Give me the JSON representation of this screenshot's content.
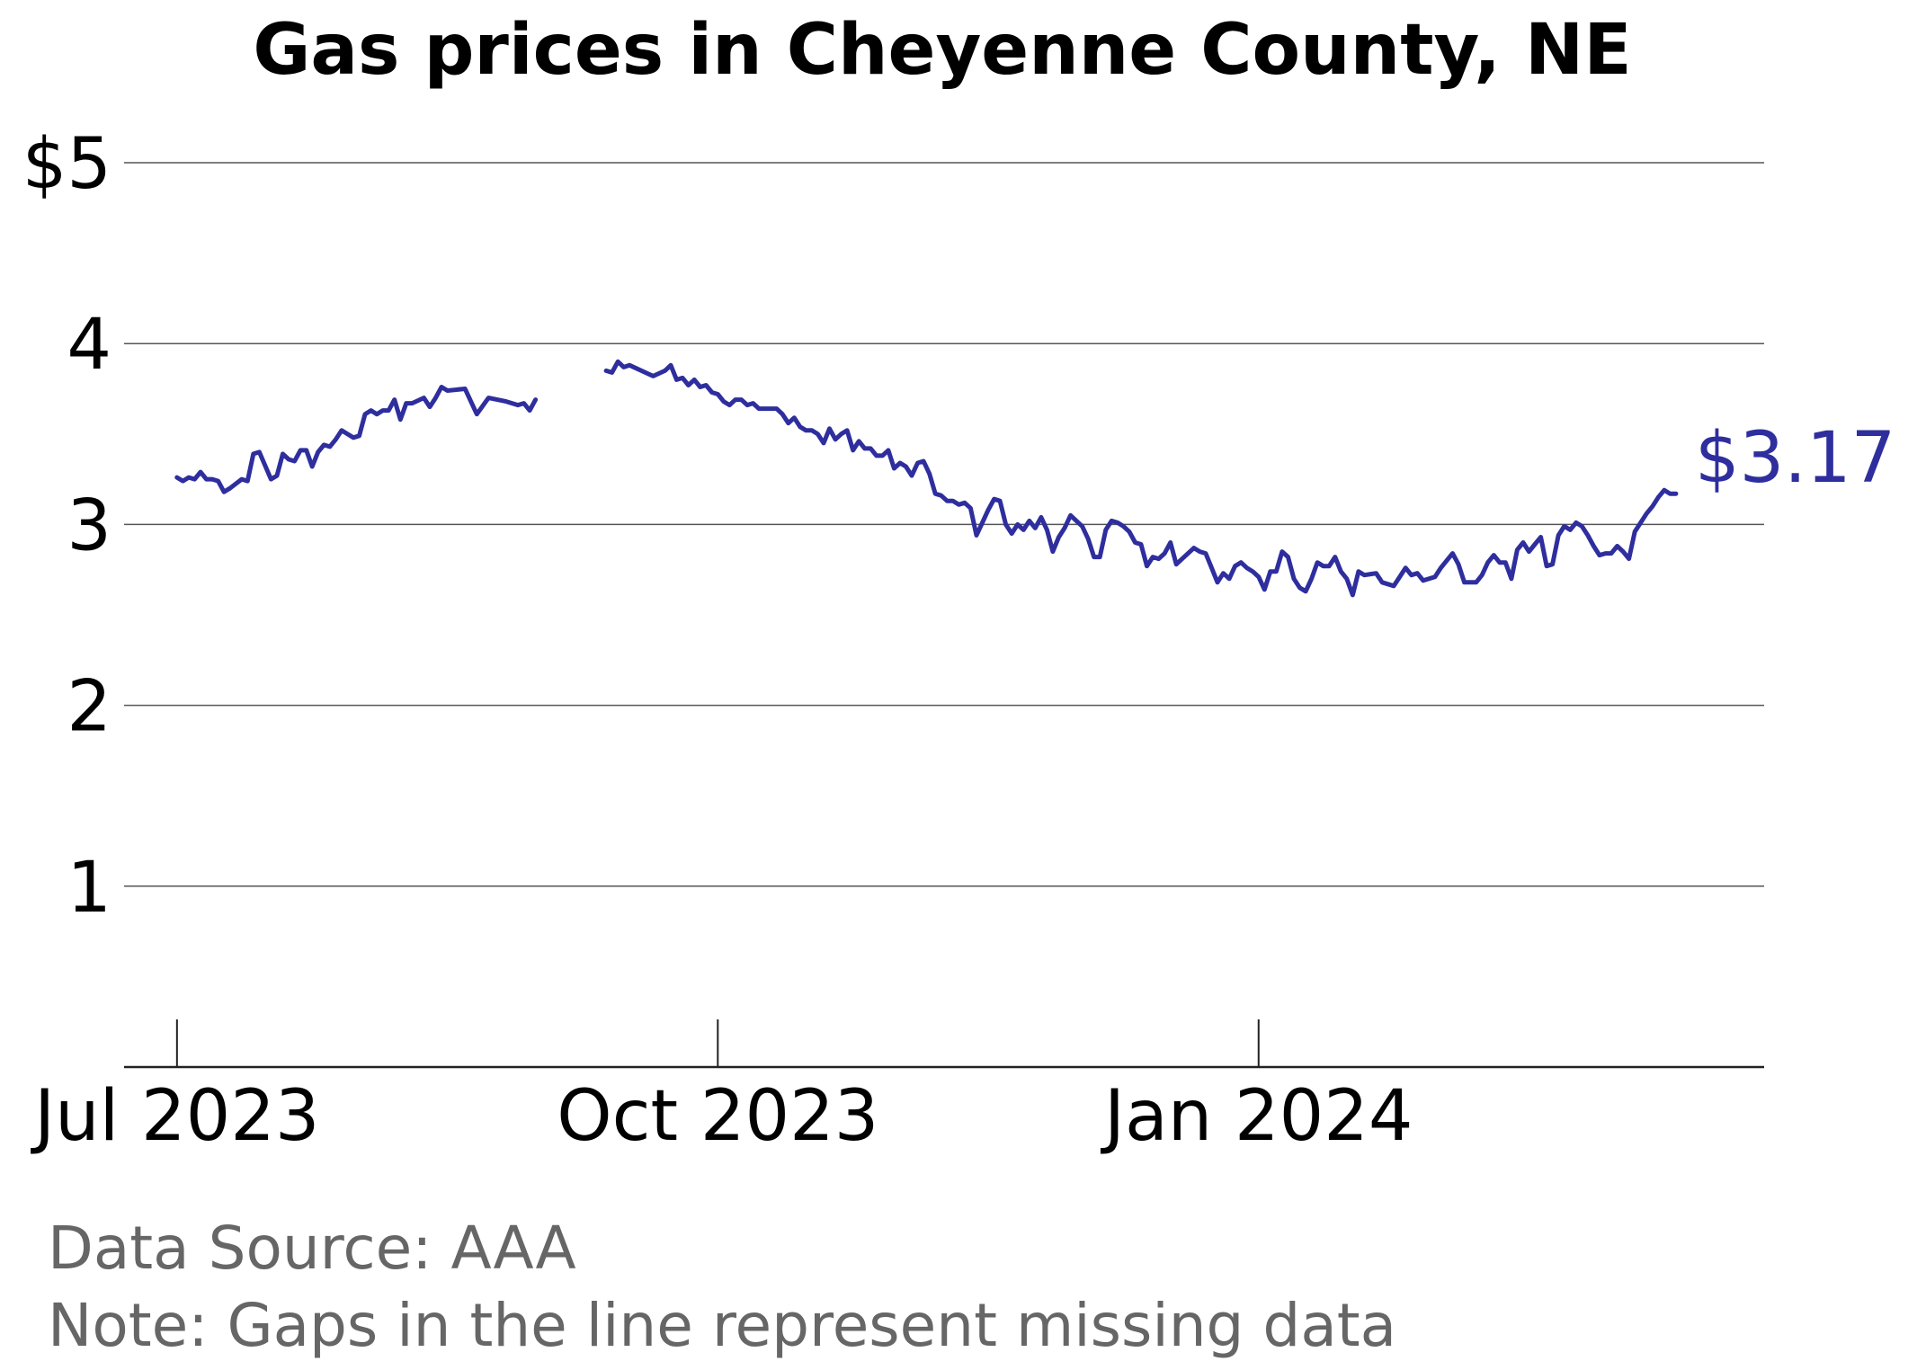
{
  "chart_data": {
    "type": "line",
    "title": "Gas prices in Cheyenne County, NE",
    "xlabel": "",
    "ylabel": "",
    "ylim": [
      0,
      5
    ],
    "y_ticks": [
      {
        "value": 1,
        "label": "1"
      },
      {
        "value": 2,
        "label": "2"
      },
      {
        "value": 3,
        "label": "3"
      },
      {
        "value": 4,
        "label": "4"
      },
      {
        "value": 5,
        "label": "$5"
      }
    ],
    "x_range": [
      "2023-06-22",
      "2024-03-27"
    ],
    "x_ticks": [
      {
        "date": "2023-07-01",
        "label": "Jul 2023"
      },
      {
        "date": "2023-10-01",
        "label": "Oct 2023"
      },
      {
        "date": "2024-01-01",
        "label": "Jan 2024"
      }
    ],
    "grid": "horizontal",
    "line_color": "#2e2e9e",
    "end_label": "$3.17",
    "series": [
      {
        "segments": [
          [
            [
              "2023-07-01",
              3.26
            ],
            [
              "2023-07-02",
              3.24
            ],
            [
              "2023-07-03",
              3.26
            ],
            [
              "2023-07-04",
              3.25
            ],
            [
              "2023-07-05",
              3.29
            ],
            [
              "2023-07-06",
              3.25
            ],
            [
              "2023-07-07",
              3.25
            ],
            [
              "2023-07-08",
              3.24
            ],
            [
              "2023-07-09",
              3.18
            ],
            [
              "2023-07-10",
              3.2
            ],
            [
              "2023-07-12",
              3.25
            ],
            [
              "2023-07-13",
              3.24
            ],
            [
              "2023-07-14",
              3.39
            ],
            [
              "2023-07-15",
              3.4
            ],
            [
              "2023-07-17",
              3.25
            ],
            [
              "2023-07-18",
              3.27
            ],
            [
              "2023-07-19",
              3.39
            ],
            [
              "2023-07-20",
              3.36
            ],
            [
              "2023-07-21",
              3.35
            ],
            [
              "2023-07-22",
              3.41
            ],
            [
              "2023-07-23",
              3.41
            ],
            [
              "2023-07-24",
              3.32
            ],
            [
              "2023-07-25",
              3.4
            ],
            [
              "2023-07-26",
              3.44
            ],
            [
              "2023-07-27",
              3.43
            ],
            [
              "2023-07-28",
              3.47
            ],
            [
              "2023-07-29",
              3.52
            ],
            [
              "2023-07-30",
              3.5
            ],
            [
              "2023-07-31",
              3.48
            ],
            [
              "2023-08-01",
              3.49
            ],
            [
              "2023-08-02",
              3.61
            ],
            [
              "2023-08-03",
              3.63
            ],
            [
              "2023-08-04",
              3.61
            ],
            [
              "2023-08-05",
              3.63
            ],
            [
              "2023-08-06",
              3.63
            ],
            [
              "2023-08-07",
              3.69
            ],
            [
              "2023-08-08",
              3.58
            ],
            [
              "2023-08-09",
              3.67
            ],
            [
              "2023-08-10",
              3.67
            ],
            [
              "2023-08-12",
              3.7
            ],
            [
              "2023-08-13",
              3.65
            ],
            [
              "2023-08-14",
              3.7
            ],
            [
              "2023-08-15",
              3.76
            ],
            [
              "2023-08-16",
              3.74
            ],
            [
              "2023-08-19",
              3.75
            ],
            [
              "2023-08-20",
              3.68
            ],
            [
              "2023-08-21",
              3.61
            ],
            [
              "2023-08-23",
              3.7
            ],
            [
              "2023-08-26",
              3.68
            ],
            [
              "2023-08-28",
              3.66
            ],
            [
              "2023-08-29",
              3.67
            ],
            [
              "2023-08-30",
              3.63
            ],
            [
              "2023-08-31",
              3.69
            ]
          ],
          [
            [
              "2023-09-12",
              3.85
            ],
            [
              "2023-09-13",
              3.84
            ],
            [
              "2023-09-14",
              3.9
            ],
            [
              "2023-09-15",
              3.87
            ],
            [
              "2023-09-16",
              3.88
            ],
            [
              "2023-09-20",
              3.82
            ],
            [
              "2023-09-22",
              3.85
            ],
            [
              "2023-09-23",
              3.88
            ],
            [
              "2023-09-24",
              3.8
            ],
            [
              "2023-09-25",
              3.81
            ],
            [
              "2023-09-26",
              3.77
            ],
            [
              "2023-09-27",
              3.8
            ],
            [
              "2023-09-28",
              3.76
            ],
            [
              "2023-09-29",
              3.77
            ],
            [
              "2023-09-30",
              3.73
            ],
            [
              "2023-10-01",
              3.72
            ],
            [
              "2023-10-02",
              3.68
            ],
            [
              "2023-10-03",
              3.66
            ],
            [
              "2023-10-04",
              3.69
            ],
            [
              "2023-10-05",
              3.69
            ],
            [
              "2023-10-06",
              3.66
            ],
            [
              "2023-10-07",
              3.67
            ],
            [
              "2023-10-08",
              3.64
            ],
            [
              "2023-10-11",
              3.64
            ],
            [
              "2023-10-12",
              3.61
            ],
            [
              "2023-10-13",
              3.56
            ],
            [
              "2023-10-14",
              3.59
            ],
            [
              "2023-10-15",
              3.54
            ],
            [
              "2023-10-16",
              3.52
            ],
            [
              "2023-10-17",
              3.52
            ],
            [
              "2023-10-18",
              3.5
            ],
            [
              "2023-10-19",
              3.45
            ],
            [
              "2023-10-20",
              3.53
            ],
            [
              "2023-10-21",
              3.47
            ],
            [
              "2023-10-22",
              3.5
            ],
            [
              "2023-10-23",
              3.52
            ],
            [
              "2023-10-24",
              3.41
            ],
            [
              "2023-10-25",
              3.46
            ],
            [
              "2023-10-26",
              3.42
            ],
            [
              "2023-10-27",
              3.42
            ],
            [
              "2023-10-28",
              3.38
            ],
            [
              "2023-10-29",
              3.38
            ],
            [
              "2023-10-30",
              3.41
            ],
            [
              "2023-10-31",
              3.31
            ],
            [
              "2023-11-01",
              3.34
            ],
            [
              "2023-11-02",
              3.32
            ],
            [
              "2023-11-03",
              3.27
            ],
            [
              "2023-11-04",
              3.34
            ],
            [
              "2023-11-05",
              3.35
            ],
            [
              "2023-11-06",
              3.28
            ],
            [
              "2023-11-07",
              3.17
            ],
            [
              "2023-11-08",
              3.16
            ],
            [
              "2023-11-09",
              3.13
            ],
            [
              "2023-11-10",
              3.13
            ],
            [
              "2023-11-11",
              3.11
            ],
            [
              "2023-11-12",
              3.12
            ],
            [
              "2023-11-13",
              3.09
            ],
            [
              "2023-11-14",
              2.94
            ],
            [
              "2023-11-15",
              3.01
            ],
            [
              "2023-11-16",
              3.08
            ],
            [
              "2023-11-17",
              3.14
            ],
            [
              "2023-11-18",
              3.13
            ],
            [
              "2023-11-19",
              3.0
            ],
            [
              "2023-11-20",
              2.95
            ],
            [
              "2023-11-21",
              3.0
            ],
            [
              "2023-11-22",
              2.97
            ],
            [
              "2023-11-23",
              3.02
            ],
            [
              "2023-11-24",
              2.98
            ],
            [
              "2023-11-25",
              3.04
            ],
            [
              "2023-11-26",
              2.97
            ],
            [
              "2023-11-27",
              2.85
            ],
            [
              "2023-11-28",
              2.93
            ],
            [
              "2023-11-29",
              2.98
            ],
            [
              "2023-11-30",
              3.05
            ],
            [
              "2023-12-01",
              3.02
            ],
            [
              "2023-12-02",
              2.99
            ],
            [
              "2023-12-03",
              2.92
            ],
            [
              "2023-12-04",
              2.82
            ],
            [
              "2023-12-05",
              2.82
            ],
            [
              "2023-12-06",
              2.97
            ],
            [
              "2023-12-07",
              3.02
            ],
            [
              "2023-12-08",
              3.01
            ],
            [
              "2023-12-09",
              2.99
            ],
            [
              "2023-12-10",
              2.96
            ],
            [
              "2023-12-11",
              2.9
            ],
            [
              "2023-12-12",
              2.89
            ],
            [
              "2023-12-13",
              2.77
            ],
            [
              "2023-12-14",
              2.82
            ],
            [
              "2023-12-15",
              2.81
            ],
            [
              "2023-12-16",
              2.84
            ],
            [
              "2023-12-17",
              2.9
            ],
            [
              "2023-12-18",
              2.78
            ],
            [
              "2023-12-19",
              2.81
            ],
            [
              "2023-12-20",
              2.84
            ],
            [
              "2023-12-21",
              2.87
            ],
            [
              "2023-12-22",
              2.85
            ],
            [
              "2023-12-23",
              2.84
            ],
            [
              "2023-12-24",
              2.76
            ],
            [
              "2023-12-25",
              2.68
            ],
            [
              "2023-12-26",
              2.73
            ],
            [
              "2023-12-27",
              2.7
            ],
            [
              "2023-12-28",
              2.77
            ],
            [
              "2023-12-29",
              2.79
            ],
            [
              "2023-12-30",
              2.76
            ],
            [
              "2023-12-31",
              2.74
            ],
            [
              "2024-01-01",
              2.71
            ],
            [
              "2024-01-02",
              2.64
            ],
            [
              "2024-01-03",
              2.74
            ],
            [
              "2024-01-04",
              2.74
            ],
            [
              "2024-01-05",
              2.85
            ],
            [
              "2024-01-06",
              2.82
            ],
            [
              "2024-01-07",
              2.7
            ],
            [
              "2024-01-08",
              2.65
            ],
            [
              "2024-01-09",
              2.63
            ],
            [
              "2024-01-10",
              2.7
            ],
            [
              "2024-01-11",
              2.79
            ],
            [
              "2024-01-12",
              2.77
            ],
            [
              "2024-01-13",
              2.77
            ],
            [
              "2024-01-14",
              2.82
            ],
            [
              "2024-01-15",
              2.74
            ],
            [
              "2024-01-16",
              2.7
            ],
            [
              "2024-01-17",
              2.61
            ],
            [
              "2024-01-18",
              2.74
            ],
            [
              "2024-01-19",
              2.72
            ],
            [
              "2024-01-21",
              2.73
            ],
            [
              "2024-01-22",
              2.68
            ],
            [
              "2024-01-24",
              2.66
            ],
            [
              "2024-01-25",
              2.71
            ],
            [
              "2024-01-26",
              2.76
            ],
            [
              "2024-01-27",
              2.72
            ],
            [
              "2024-01-28",
              2.73
            ],
            [
              "2024-01-29",
              2.69
            ],
            [
              "2024-01-31",
              2.71
            ],
            [
              "2024-02-01",
              2.76
            ],
            [
              "2024-02-02",
              2.8
            ],
            [
              "2024-02-03",
              2.84
            ],
            [
              "2024-02-04",
              2.78
            ],
            [
              "2024-02-05",
              2.68
            ],
            [
              "2024-02-07",
              2.68
            ],
            [
              "2024-02-08",
              2.72
            ],
            [
              "2024-02-09",
              2.79
            ],
            [
              "2024-02-10",
              2.83
            ],
            [
              "2024-02-11",
              2.79
            ],
            [
              "2024-02-12",
              2.79
            ],
            [
              "2024-02-13",
              2.7
            ],
            [
              "2024-02-14",
              2.86
            ],
            [
              "2024-02-15",
              2.9
            ],
            [
              "2024-02-16",
              2.85
            ],
            [
              "2024-02-17",
              2.89
            ],
            [
              "2024-02-18",
              2.93
            ],
            [
              "2024-02-19",
              2.77
            ],
            [
              "2024-02-20",
              2.78
            ],
            [
              "2024-02-21",
              2.94
            ],
            [
              "2024-02-22",
              2.99
            ],
            [
              "2024-02-23",
              2.97
            ],
            [
              "2024-02-24",
              3.01
            ],
            [
              "2024-02-25",
              2.99
            ],
            [
              "2024-02-26",
              2.94
            ],
            [
              "2024-02-27",
              2.88
            ],
            [
              "2024-02-28",
              2.83
            ],
            [
              "2024-02-29",
              2.84
            ],
            [
              "2024-03-01",
              2.84
            ],
            [
              "2024-03-02",
              2.88
            ],
            [
              "2024-03-03",
              2.85
            ],
            [
              "2024-03-04",
              2.81
            ],
            [
              "2024-03-05",
              2.96
            ],
            [
              "2024-03-06",
              3.01
            ],
            [
              "2024-03-07",
              3.06
            ],
            [
              "2024-03-08",
              3.1
            ],
            [
              "2024-03-09",
              3.15
            ],
            [
              "2024-03-10",
              3.19
            ],
            [
              "2024-03-11",
              3.17
            ],
            [
              "2024-03-12",
              3.17
            ]
          ]
        ]
      }
    ]
  },
  "notes": {
    "source": "Data Source: AAA",
    "gaps": "Note: Gaps in the line represent missing data"
  }
}
